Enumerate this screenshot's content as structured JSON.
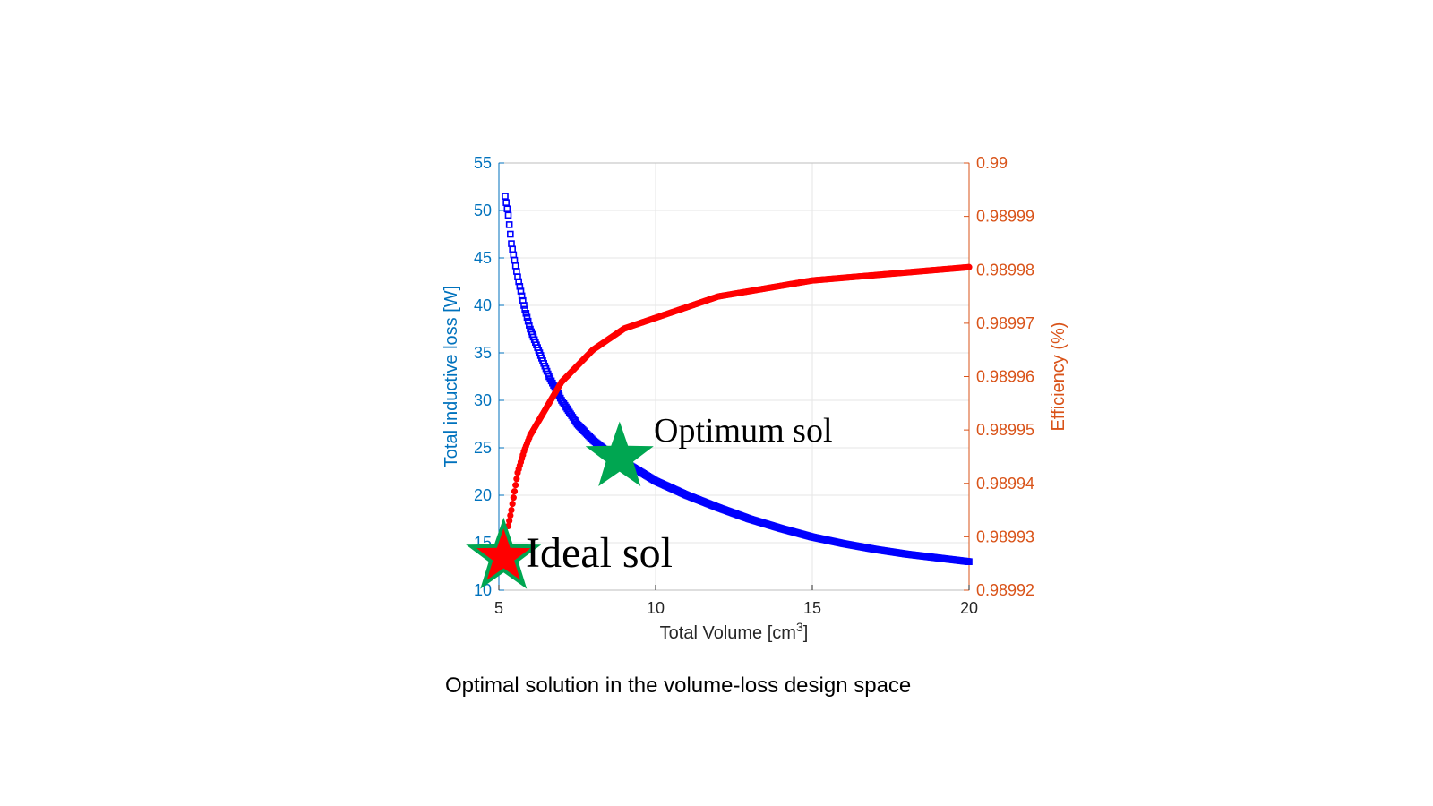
{
  "caption": "Optimal solution in the volume-loss design space",
  "colors": {
    "left_axis": "#0072BD",
    "right_axis": "#D95319",
    "loss_series": "#0000FF",
    "efficiency_series": "#FF0000",
    "star_green": "#00A651",
    "star_red": "#FF0000",
    "grid": "#E6E6E6"
  },
  "chart_data": {
    "type": "scatter",
    "xlabel": "Total Volume [cm",
    "xlabel_sup": "3",
    "xlabel_end": "]",
    "ylabel_left": "Total inductive loss [W]",
    "ylabel_right": "Efficiency (%)",
    "xlim": [
      5,
      20
    ],
    "ylim_left": [
      10,
      55
    ],
    "ylim_right": [
      0.98992,
      0.99
    ],
    "x_ticks": [
      "5",
      "10",
      "15",
      "20"
    ],
    "y_left_ticks": [
      "10",
      "15",
      "20",
      "25",
      "30",
      "35",
      "40",
      "45",
      "50",
      "55"
    ],
    "y_right_ticks": [
      "0.98992",
      "0.98993",
      "0.98994",
      "0.98995",
      "0.98996",
      "0.98997",
      "0.98998",
      "0.98999",
      "0.99"
    ],
    "grid": true,
    "series": [
      {
        "axis": "left",
        "marker": "square",
        "x": [
          5.2,
          5.3,
          5.4,
          5.6,
          5.8,
          6.0,
          6.3,
          6.6,
          7.0,
          7.5,
          8.0,
          8.5,
          9.0,
          9.5,
          10.0,
          11.0,
          12.0,
          13.0,
          14.0,
          15.0,
          16.0,
          17.0,
          18.0,
          19.0,
          20.0
        ],
        "y": [
          51.5,
          49.5,
          46.5,
          43.0,
          40.0,
          37.5,
          35.0,
          32.5,
          30.0,
          27.5,
          25.8,
          24.5,
          23.5,
          22.5,
          21.5,
          20.0,
          18.7,
          17.5,
          16.5,
          15.6,
          14.9,
          14.3,
          13.8,
          13.4,
          13.0
        ]
      },
      {
        "axis": "right",
        "marker": "circle",
        "x": [
          5.3,
          5.4,
          5.6,
          5.8,
          6.0,
          6.3,
          6.6,
          7.0,
          7.5,
          8.0,
          8.5,
          9.0,
          9.5,
          10.0,
          11.0,
          12.0,
          13.0,
          14.0,
          15.0,
          16.0,
          17.0,
          18.0,
          19.0,
          20.0
        ],
        "y": [
          0.989932,
          0.989935,
          0.989942,
          0.989946,
          0.989949,
          0.989952,
          0.989955,
          0.989959,
          0.989962,
          0.989965,
          0.989967,
          0.989969,
          0.98997,
          0.989971,
          0.989973,
          0.989975,
          0.989976,
          0.989977,
          0.989978,
          0.9899785,
          0.989979,
          0.9899795,
          0.98998,
          0.9899805
        ]
      }
    ],
    "annotations": [
      {
        "text": "Optimum sol",
        "x": 8.85,
        "y_left": 24.0
      },
      {
        "text": "Ideal sol",
        "x": 5.15,
        "y_left": 13.5
      }
    ]
  }
}
